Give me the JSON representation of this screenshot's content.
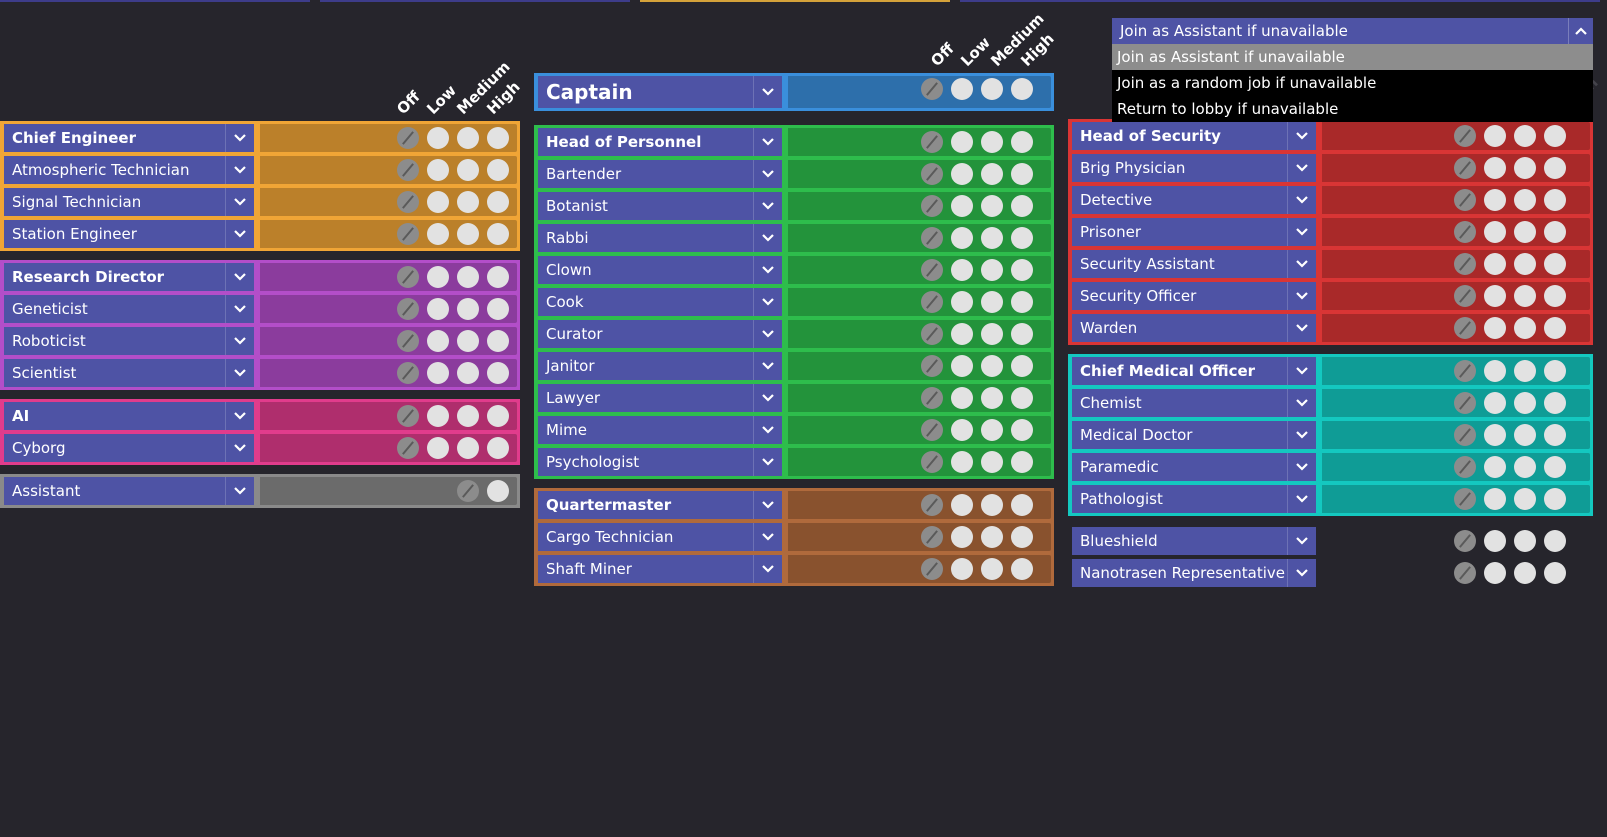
{
  "priority_headers": [
    "Off",
    "Low",
    "Medium",
    "High"
  ],
  "fallback": {
    "selected": "Join as Assistant if unavailable",
    "options": [
      "Join as Assistant if unavailable",
      "Join as a random job if unavailable",
      "Return to lobby if unavailable"
    ]
  },
  "colors": {
    "background": "#26252c",
    "job_button": "#4e53a5",
    "engineering": "#f0a536",
    "science": "#b34ec9",
    "silicon": "#e13c8c",
    "assistant": "#8a8a8a",
    "command": "#3a8fdc",
    "service": "#2ebd4c",
    "cargo": "#b06a3c",
    "security": "#d93535",
    "medical": "#14c8c0"
  },
  "columns": {
    "left": [
      {
        "id": "engineering",
        "jobs": [
          "Chief Engineer",
          "Atmospheric Technician",
          "Signal Technician",
          "Station Engineer"
        ]
      },
      {
        "id": "science",
        "jobs": [
          "Research Director",
          "Geneticist",
          "Roboticist",
          "Scientist"
        ]
      },
      {
        "id": "silicon",
        "jobs": [
          "AI",
          "Cyborg"
        ]
      },
      {
        "id": "assistant",
        "jobs": [
          "Assistant"
        ]
      }
    ],
    "middle": [
      {
        "id": "command",
        "jobs": [
          "Captain"
        ]
      },
      {
        "id": "service",
        "jobs": [
          "Head of Personnel",
          "Bartender",
          "Botanist",
          "Rabbi",
          "Clown",
          "Cook",
          "Curator",
          "Janitor",
          "Lawyer",
          "Mime",
          "Psychologist"
        ]
      },
      {
        "id": "cargo",
        "jobs": [
          "Quartermaster",
          "Cargo Technician",
          "Shaft Miner"
        ]
      }
    ],
    "right": [
      {
        "id": "security",
        "jobs": [
          "Head of Security",
          "Brig Physician",
          "Detective",
          "Prisoner",
          "Security Assistant",
          "Security Officer",
          "Warden"
        ]
      },
      {
        "id": "medical",
        "jobs": [
          "Chief Medical Officer",
          "Chemist",
          "Medical Doctor",
          "Paramedic",
          "Pathologist"
        ]
      },
      {
        "id": "centcom",
        "jobs": [
          "Blueshield",
          "Nanotrasen Representative"
        ]
      }
    ]
  }
}
